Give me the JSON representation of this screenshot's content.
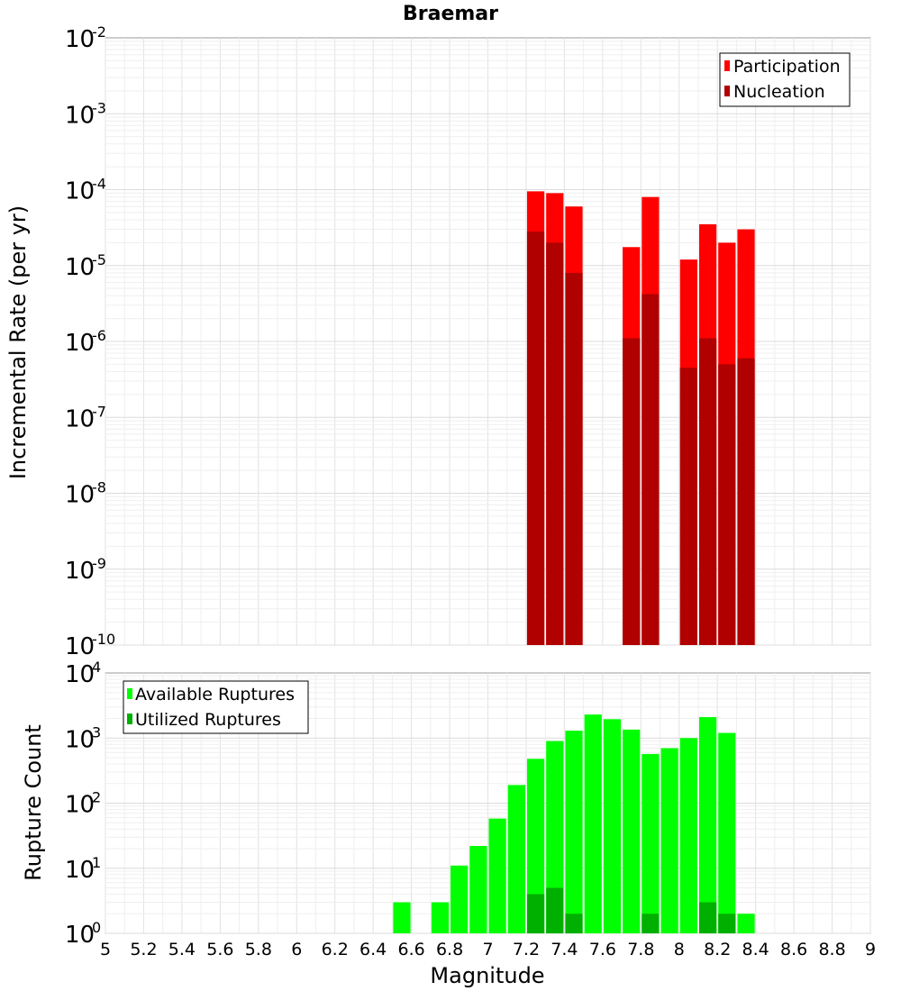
{
  "chart_data": [
    {
      "type": "bar",
      "title": "Braemar",
      "xlabel": "",
      "ylabel": "Incremental Rate (per yr)",
      "yscale": "log",
      "ylim_exp": [
        -10,
        -2
      ],
      "xlim": [
        5,
        9
      ],
      "bin_width": 0.1,
      "ytick_base": "10",
      "ytick_exponents": [
        "-10",
        "-9",
        "-8",
        "-7",
        "-6",
        "-5",
        "-4",
        "-3",
        "-2"
      ],
      "legend_position": "top-right",
      "legend": [
        "Participation",
        "Nucleation"
      ],
      "colors": {
        "Participation": "#ff0000",
        "Nucleation": "#b00000"
      },
      "series": [
        {
          "name": "Participation",
          "x": [
            7.25,
            7.35,
            7.45,
            7.75,
            7.85,
            8.05,
            8.15,
            8.25,
            8.35
          ],
          "values": [
            9.5e-05,
            9e-05,
            6e-05,
            1.75e-05,
            8e-05,
            1.2e-05,
            3.5e-05,
            2e-05,
            3e-05
          ]
        },
        {
          "name": "Nucleation",
          "x": [
            7.25,
            7.35,
            7.45,
            7.75,
            7.85,
            8.05,
            8.15,
            8.25,
            8.35
          ],
          "values": [
            2.8e-05,
            2e-05,
            8e-06,
            1.1e-06,
            4.2e-06,
            4.5e-07,
            1.1e-06,
            5e-07,
            6e-07
          ]
        }
      ]
    },
    {
      "type": "bar",
      "title": "",
      "xlabel": "Magnitude",
      "ylabel": "Rupture Count",
      "yscale": "log",
      "ylim_exp": [
        0,
        4
      ],
      "xlim": [
        5,
        9
      ],
      "bin_width": 0.1,
      "ytick_base": "10",
      "ytick_exponents": [
        "0",
        "1",
        "2",
        "3",
        "4"
      ],
      "xtick_labels": [
        "5",
        "5.2",
        "5.4",
        "5.6",
        "5.8",
        "6",
        "6.2",
        "6.4",
        "6.6",
        "6.8",
        "7",
        "7.2",
        "7.4",
        "7.6",
        "7.8",
        "8",
        "8.2",
        "8.4",
        "8.6",
        "8.8",
        "9"
      ],
      "legend_position": "top-left",
      "legend": [
        "Available Ruptures",
        "Utilized Ruptures"
      ],
      "colors": {
        "Available Ruptures": "#00ff00",
        "Utilized Ruptures": "#00b000"
      },
      "series": [
        {
          "name": "Available Ruptures",
          "x": [
            6.55,
            6.75,
            6.85,
            6.95,
            7.05,
            7.15,
            7.25,
            7.35,
            7.45,
            7.55,
            7.65,
            7.75,
            7.85,
            7.95,
            8.05,
            8.15,
            8.25,
            8.35
          ],
          "values": [
            3,
            3,
            11,
            22,
            58,
            190,
            480,
            900,
            1300,
            2300,
            1950,
            1350,
            570,
            700,
            1000,
            2100,
            1200,
            2
          ]
        },
        {
          "name": "Utilized Ruptures",
          "x": [
            7.25,
            7.35,
            7.45,
            7.75,
            7.85,
            8.05,
            8.15,
            8.25,
            8.35
          ],
          "values": [
            4,
            5,
            2,
            1,
            2,
            1,
            3,
            2,
            1
          ]
        }
      ]
    }
  ]
}
